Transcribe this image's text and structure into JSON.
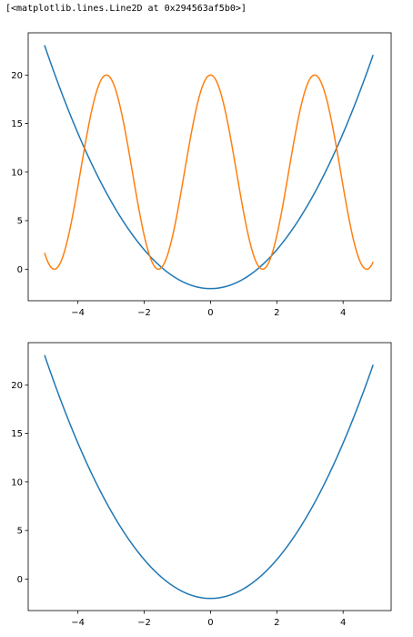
{
  "output_text": "[<matplotlib.lines.Line2D at 0x294563af5b0>]",
  "colors": {
    "series_1": "#1f77b4",
    "series_2": "#ff7f0e",
    "axes": "#000000",
    "background": "#ffffff"
  },
  "chart_data": [
    {
      "type": "line",
      "title": "",
      "xlabel": "",
      "ylabel": "",
      "xlim": [
        -5.5,
        5.45
      ],
      "ylim": [
        -3.25,
        24.35
      ],
      "xticks": [
        -4,
        -2,
        0,
        2,
        4
      ],
      "yticks": [
        0,
        5,
        10,
        15,
        20
      ],
      "xtick_labels": [
        "−4",
        "−2",
        "0",
        "2",
        "4"
      ],
      "ytick_labels": [
        "0",
        "5",
        "10",
        "15",
        "20"
      ],
      "grid": false,
      "legend": null,
      "x_range": [
        -5,
        4.9
      ],
      "series": [
        {
          "formula": "y = x^2 - 2",
          "x": [
            -5,
            -4.5,
            -4,
            -3.5,
            -3,
            -2.5,
            -2,
            -1.5,
            -1,
            -0.5,
            0,
            0.5,
            1,
            1.5,
            2,
            2.5,
            3,
            3.5,
            4,
            4.5,
            4.9
          ],
          "values": [
            23,
            18.25,
            14,
            10.25,
            7,
            4.25,
            2,
            0.25,
            -1,
            -1.75,
            -2,
            -1.75,
            -1,
            0.25,
            2,
            4.25,
            7,
            10.25,
            14,
            18.25,
            22.01
          ],
          "color": "#1f77b4"
        },
        {
          "formula": "y = 20 * cos(x)^2",
          "x": [
            -5,
            -4.71,
            -4,
            -3.14,
            -2,
            -1.57,
            -1,
            0,
            1,
            1.57,
            2,
            3.14,
            4,
            4.71,
            4.9
          ],
          "values": [
            1.61,
            0.0,
            8.54,
            20,
            3.46,
            0.0,
            5.84,
            20,
            5.84,
            0.0,
            3.46,
            20,
            8.54,
            0.0,
            0.7
          ],
          "color": "#ff7f0e"
        }
      ]
    },
    {
      "type": "line",
      "title": "",
      "xlabel": "",
      "ylabel": "",
      "xlim": [
        -5.5,
        5.45
      ],
      "ylim": [
        -3.25,
        24.35
      ],
      "xticks": [
        -4,
        -2,
        0,
        2,
        4
      ],
      "yticks": [
        0,
        5,
        10,
        15,
        20
      ],
      "xtick_labels": [
        "−4",
        "−2",
        "0",
        "2",
        "4"
      ],
      "ytick_labels": [
        "0",
        "5",
        "10",
        "15",
        "20"
      ],
      "grid": false,
      "legend": null,
      "x_range": [
        -5,
        4.9
      ],
      "series": [
        {
          "formula": "y = x^2 - 2",
          "x": [
            -5,
            -4.5,
            -4,
            -3.5,
            -3,
            -2.5,
            -2,
            -1.5,
            -1,
            -0.5,
            0,
            0.5,
            1,
            1.5,
            2,
            2.5,
            3,
            3.5,
            4,
            4.5,
            4.9
          ],
          "values": [
            23,
            18.25,
            14,
            10.25,
            7,
            4.25,
            2,
            0.25,
            -1,
            -1.75,
            -2,
            -1.75,
            -1,
            0.25,
            2,
            4.25,
            7,
            10.25,
            14,
            18.25,
            22.01
          ],
          "color": "#1f77b4"
        }
      ]
    }
  ]
}
